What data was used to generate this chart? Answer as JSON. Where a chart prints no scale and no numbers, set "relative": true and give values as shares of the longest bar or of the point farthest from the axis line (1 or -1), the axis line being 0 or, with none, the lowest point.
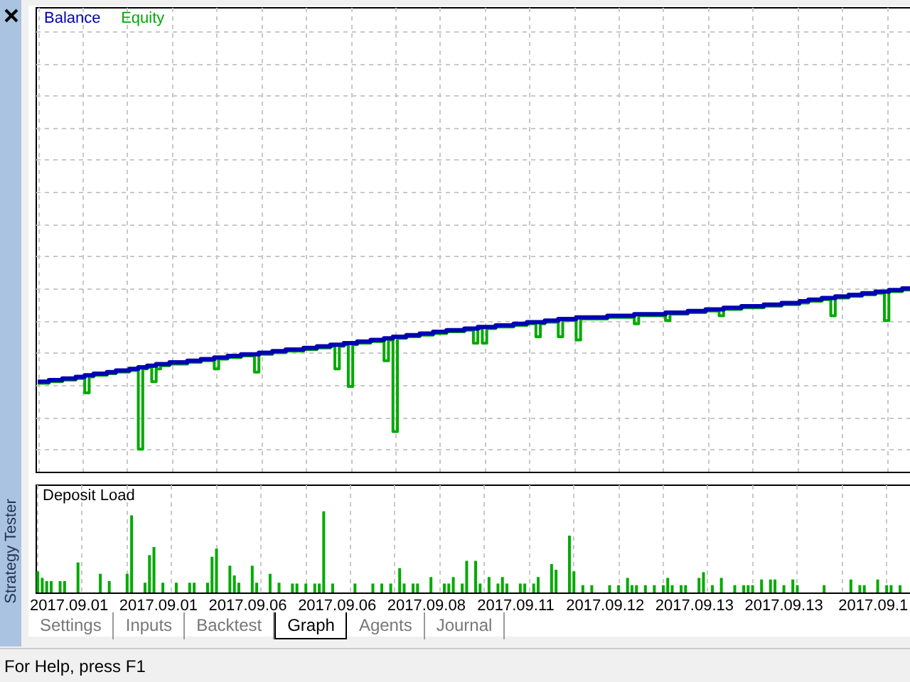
{
  "chart_data": [
    {
      "type": "step",
      "relative": true,
      "legend": "top left",
      "grid": true,
      "categories": [
        null,
        null,
        null,
        null,
        null,
        null,
        null,
        null,
        null,
        null,
        null,
        null,
        null,
        null,
        null,
        null,
        null,
        null,
        null,
        null,
        null,
        null,
        null,
        null,
        null,
        null,
        null,
        null,
        null,
        null,
        null,
        null,
        null,
        null,
        null,
        null,
        null,
        null,
        null,
        null,
        null,
        null,
        null,
        null,
        null,
        null,
        null,
        null,
        null,
        null,
        null,
        null,
        null,
        null,
        null,
        null,
        null,
        null,
        null,
        null,
        null,
        null,
        null,
        null,
        null,
        null,
        null,
        null,
        null,
        null,
        null,
        null,
        null,
        null,
        null,
        null,
        null,
        null,
        null,
        null,
        null,
        null,
        null,
        null,
        null,
        null,
        null,
        null,
        null,
        null,
        null,
        null,
        null,
        null,
        null,
        null,
        null,
        null,
        null,
        null,
        null,
        null,
        null,
        null,
        null,
        null,
        null,
        null,
        null,
        null,
        null,
        null,
        null,
        null,
        null,
        null,
        null,
        null,
        null,
        null,
        null,
        null,
        null,
        null,
        null,
        null,
        null,
        null,
        null,
        null,
        null,
        null,
        null,
        null,
        null,
        null,
        null,
        null,
        null,
        null,
        null,
        null,
        null,
        null,
        null,
        null,
        null,
        null,
        null,
        null,
        null,
        null,
        null,
        null,
        null,
        null,
        null,
        null,
        null,
        null,
        null,
        null,
        null,
        null,
        null,
        null,
        null,
        null,
        null,
        null,
        null,
        null,
        null,
        null,
        null,
        null,
        null,
        null,
        null,
        null,
        null,
        null,
        null,
        null,
        null,
        null,
        null,
        null,
        null,
        null,
        null,
        null,
        null,
        null,
        null,
        null,
        null
      ],
      "series": [
        {
          "name": "Balance",
          "color": "#0000b4",
          "values": [
            0.42,
            0.42,
            0.42,
            0.43,
            0.43,
            0.43,
            0.44,
            0.44,
            0.44,
            0.45,
            0.45,
            0.46,
            0.46,
            0.47,
            0.47,
            0.47,
            0.48,
            0.48,
            0.49,
            0.49,
            0.49,
            0.5,
            0.5,
            0.51,
            0.51,
            0.52,
            0.52,
            0.53,
            0.53,
            0.53,
            0.54,
            0.54,
            0.54,
            0.54,
            0.55,
            0.55,
            0.55,
            0.56,
            0.56,
            0.56,
            0.57,
            0.57,
            0.57,
            0.58,
            0.58,
            0.58,
            0.59,
            0.59,
            0.59,
            0.59,
            0.6,
            0.6,
            0.6,
            0.61,
            0.61,
            0.61,
            0.62,
            0.62,
            0.62,
            0.62,
            0.63,
            0.63,
            0.63,
            0.64,
            0.64,
            0.64,
            0.65,
            0.65,
            0.65,
            0.66,
            0.66,
            0.66,
            0.67,
            0.67,
            0.67,
            0.68,
            0.68,
            0.68,
            0.69,
            0.69,
            0.7,
            0.7,
            0.7,
            0.71,
            0.71,
            0.71,
            0.72,
            0.72,
            0.72,
            0.73,
            0.73,
            0.73,
            0.74,
            0.74,
            0.74,
            0.74,
            0.75,
            0.75,
            0.75,
            0.76,
            0.76,
            0.76,
            0.76,
            0.77,
            0.77,
            0.77,
            0.77,
            0.78,
            0.78,
            0.78,
            0.79,
            0.79,
            0.79,
            0.79,
            0.8,
            0.8,
            0.8,
            0.81,
            0.81,
            0.81,
            0.81,
            0.82,
            0.82,
            0.82,
            0.82,
            0.82,
            0.82,
            0.82,
            0.83,
            0.83,
            0.83,
            0.83,
            0.83,
            0.83,
            0.84,
            0.84,
            0.84,
            0.84,
            0.84,
            0.84,
            0.84,
            0.85,
            0.85,
            0.85,
            0.85,
            0.85,
            0.86,
            0.86,
            0.86,
            0.86,
            0.87,
            0.87,
            0.87,
            0.87,
            0.88,
            0.88,
            0.88,
            0.88,
            0.89,
            0.89,
            0.89,
            0.89,
            0.89,
            0.9,
            0.9,
            0.9,
            0.9,
            0.91,
            0.91,
            0.91,
            0.91,
            0.92,
            0.92,
            0.93,
            0.93,
            0.93,
            0.94,
            0.94,
            0.94,
            0.95,
            0.95,
            0.95,
            0.96,
            0.96,
            0.96,
            0.97,
            0.97,
            0.97,
            0.98,
            0.98,
            0.98,
            0.99,
            0.99,
            0.99,
            1,
            1,
            1
          ]
        },
        {
          "name": "Equity",
          "color": "#00aa00",
          "values": [
            0.41,
            0.41,
            0.41,
            0.42,
            0.42,
            0.42,
            0.43,
            0.43,
            0.43,
            0.44,
            0.44,
            0.35,
            0.45,
            0.46,
            0.46,
            0.46,
            0.47,
            0.47,
            0.48,
            0.48,
            0.48,
            0.49,
            0.49,
            0,
            0.5,
            0.51,
            0.42,
            0.5,
            0.52,
            0.52,
            0.53,
            0.53,
            0.53,
            0.53,
            0.54,
            0.54,
            0.54,
            0.55,
            0.55,
            0.55,
            0.5,
            0.56,
            0.56,
            0.57,
            0.57,
            0.57,
            0.58,
            0.58,
            0.58,
            0.48,
            0.59,
            0.59,
            0.59,
            0.6,
            0.6,
            0.6,
            0.61,
            0.61,
            0.61,
            0.61,
            0.62,
            0.62,
            0.62,
            0.63,
            0.63,
            0.63,
            0.64,
            0.5,
            0.64,
            0.65,
            0.39,
            0.65,
            0.66,
            0.66,
            0.66,
            0.67,
            0.67,
            0.67,
            0.55,
            0.68,
            0.11,
            0.69,
            0.69,
            0.7,
            0.7,
            0.7,
            0.71,
            0.71,
            0.71,
            0.72,
            0.72,
            0.72,
            0.73,
            0.73,
            0.73,
            0.73,
            0.74,
            0.74,
            0.66,
            0.75,
            0.66,
            0.75,
            0.75,
            0.76,
            0.76,
            0.76,
            0.76,
            0.77,
            0.77,
            0.77,
            0.78,
            0.78,
            0.7,
            0.78,
            0.79,
            0.79,
            0.79,
            0.7,
            0.8,
            0.8,
            0.8,
            0.68,
            0.81,
            0.81,
            0.81,
            0.81,
            0.81,
            0.81,
            0.82,
            0.82,
            0.82,
            0.82,
            0.82,
            0.82,
            0.78,
            0.83,
            0.83,
            0.83,
            0.83,
            0.83,
            0.83,
            0.8,
            0.84,
            0.84,
            0.84,
            0.84,
            0.85,
            0.85,
            0.85,
            0.85,
            0.86,
            0.86,
            0.86,
            0.83,
            0.87,
            0.87,
            0.87,
            0.87,
            0.88,
            0.88,
            0.88,
            0.88,
            0.88,
            0.89,
            0.89,
            0.89,
            0.89,
            0.9,
            0.9,
            0.9,
            0.9,
            0.91,
            0.91,
            0.92,
            0.92,
            0.92,
            0.93,
            0.93,
            0.83,
            0.94,
            0.94,
            0.94,
            0.95,
            0.95,
            0.95,
            0.96,
            0.96,
            0.96,
            0.97,
            0.97,
            0.8,
            0.98,
            0.98,
            0.98,
            0.99,
            0.99,
            0.99
          ]
        }
      ]
    },
    {
      "type": "bar",
      "title": "Deposit Load",
      "relative": true,
      "grid": "x",
      "color": "#00aa00",
      "categories": [
        null,
        null,
        null,
        null,
        null,
        null,
        null,
        "2017.09.01",
        null,
        null,
        null,
        null,
        null,
        null,
        null,
        null,
        null,
        null,
        null,
        null,
        null,
        null,
        null,
        null,
        null,
        null,
        null,
        "2017.09.01",
        null,
        null,
        null,
        null,
        null,
        null,
        null,
        null,
        null,
        null,
        null,
        null,
        null,
        null,
        null,
        null,
        null,
        null,
        null,
        "2017.09.06",
        null,
        null,
        null,
        null,
        null,
        null,
        null,
        null,
        null,
        null,
        null,
        null,
        null,
        null,
        null,
        null,
        null,
        null,
        null,
        "2017.09.06",
        null,
        null,
        null,
        null,
        null,
        null,
        null,
        null,
        null,
        null,
        null,
        null,
        null,
        null,
        null,
        null,
        null,
        null,
        null,
        "2017.09.08",
        null,
        null,
        null,
        null,
        null,
        null,
        null,
        null,
        null,
        null,
        null,
        null,
        null,
        null,
        null,
        null,
        null,
        null,
        null,
        "2017.09.11",
        null,
        null,
        null,
        null,
        null,
        null,
        null,
        null,
        null,
        null,
        null,
        null,
        null,
        null,
        null,
        null,
        null,
        null,
        null,
        "2017.09.12",
        null,
        null,
        null,
        null,
        null,
        null,
        null,
        null,
        null,
        null,
        null,
        null,
        null,
        null,
        null,
        null,
        null,
        null,
        null,
        "2017.09.13",
        null,
        null,
        null,
        null,
        null,
        null,
        null,
        null,
        null,
        null,
        null,
        null,
        null,
        null,
        null,
        null,
        null,
        null,
        null,
        "2017.09.13",
        null,
        null,
        null,
        null,
        null,
        null,
        null,
        null,
        null,
        null,
        null,
        null,
        null,
        null,
        null,
        null,
        null,
        null,
        null,
        "2017.09.1",
        null,
        null,
        null,
        null,
        null,
        null,
        null,
        null,
        null
      ],
      "values": [
        0.26,
        0.18,
        0.14,
        0.14,
        null,
        0.14,
        0.14,
        null,
        null,
        0.37,
        null,
        null,
        null,
        null,
        0.23,
        null,
        0.14,
        null,
        null,
        null,
        0.23,
        0.95,
        null,
        null,
        0.12,
        0.46,
        0.56,
        null,
        0.12,
        null,
        null,
        0.12,
        null,
        null,
        0.12,
        0.12,
        null,
        null,
        0.12,
        0.44,
        0.54,
        null,
        null,
        0.33,
        0.21,
        0.12,
        null,
        null,
        0.33,
        0.12,
        null,
        null,
        0.23,
        null,
        0.12,
        null,
        null,
        0.11,
        0.11,
        null,
        0.11,
        null,
        0.11,
        0.11,
        1,
        null,
        0.11,
        null,
        null,
        null,
        null,
        0.11,
        null,
        null,
        null,
        0.11,
        null,
        0.11,
        null,
        0.11,
        null,
        0.3,
        0.11,
        null,
        0.11,
        0.11,
        null,
        null,
        0.19,
        null,
        null,
        0.11,
        0.11,
        0.19,
        null,
        0.11,
        0.39,
        null,
        0.39,
        0.11,
        null,
        0.19,
        null,
        0.11,
        0.19,
        0.11,
        null,
        null,
        0.11,
        0.11,
        null,
        0.11,
        0.19,
        null,
        null,
        0.35,
        0.28,
        null,
        null,
        0.7,
        0.26,
        null,
        0.09,
        null,
        0.09,
        null,
        null,
        null,
        0.09,
        null,
        0.09,
        null,
        0.18,
        0.09,
        0.09,
        null,
        0.09,
        null,
        0.09,
        null,
        0.09,
        0.18,
        0.09,
        null,
        0.09,
        0.09,
        null,
        null,
        0.18,
        0.25,
        null,
        0.09,
        null,
        0.18,
        null,
        null,
        0.09,
        null,
        0.09,
        0.09,
        0.09,
        null,
        0.16,
        null,
        0.16,
        0.16,
        null,
        0.09,
        null,
        0.16,
        0.09,
        null,
        null,
        null,
        null,
        null,
        0.09,
        null,
        null,
        null,
        null,
        null,
        0.16,
        null,
        0.09,
        0.09,
        null,
        null,
        0.16,
        null,
        0.09,
        0.09,
        null,
        0.09,
        null,
        null,
        null
      ],
      "annotations": [
        "Strategy Tester",
        "Settings",
        "Inputs",
        "Backtest",
        "Graph",
        "Agents",
        "Journal",
        "For Help, press F1"
      ]
    }
  ]
}
